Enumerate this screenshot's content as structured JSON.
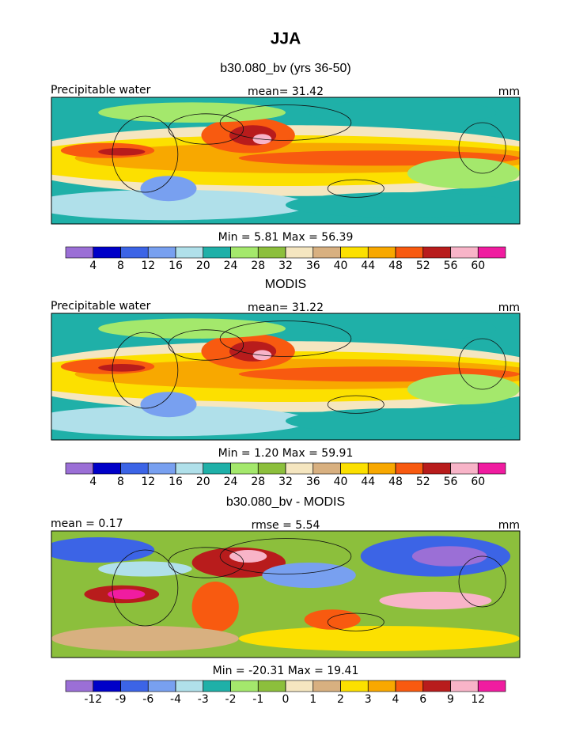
{
  "title": "JJA",
  "panels": [
    {
      "title": "b30.080_bv (yrs 36-50)",
      "left_label": "Precipitable water",
      "center_label": "mean=  31.42",
      "right_label": "mm",
      "stats": "Min =   5.81 Max =  56.39",
      "levels": [
        4,
        8,
        12,
        16,
        20,
        24,
        28,
        32,
        36,
        40,
        44,
        48,
        52,
        56,
        60
      ],
      "colors": [
        "#9b6fd6",
        "#0000c8",
        "#3c64e6",
        "#78a0f0",
        "#b0e0ea",
        "#1fb0a8",
        "#a4e86c",
        "#8cbf3c",
        "#f5e6c0",
        "#d8b080",
        "#fce000",
        "#f8a800",
        "#f85a10",
        "#b81c1c",
        "#f8b4c8",
        "#f01ca0"
      ]
    },
    {
      "title": "MODIS",
      "left_label": "Precipitable water",
      "center_label": "mean=  31.22",
      "right_label": "mm",
      "stats": "Min =   1.20 Max =  59.91",
      "levels": [
        4,
        8,
        12,
        16,
        20,
        24,
        28,
        32,
        36,
        40,
        44,
        48,
        52,
        56,
        60
      ],
      "colors": [
        "#9b6fd6",
        "#0000c8",
        "#3c64e6",
        "#78a0f0",
        "#b0e0ea",
        "#1fb0a8",
        "#a4e86c",
        "#8cbf3c",
        "#f5e6c0",
        "#d8b080",
        "#fce000",
        "#f8a800",
        "#f85a10",
        "#b81c1c",
        "#f8b4c8",
        "#f01ca0"
      ]
    },
    {
      "title": "b30.080_bv - MODIS",
      "left_label": "mean =   0.17",
      "center_label": "rmse =   5.54",
      "right_label": "mm",
      "stats": "Min = -20.31 Max =  19.41",
      "levels": [
        -12,
        -9,
        -6,
        -4,
        -3,
        -2,
        -1,
        0,
        1,
        2,
        3,
        4,
        6,
        9,
        12
      ],
      "colors": [
        "#9b6fd6",
        "#0000c8",
        "#3c64e6",
        "#78a0f0",
        "#b0e0ea",
        "#1fb0a8",
        "#a4e86c",
        "#8cbf3c",
        "#f5e6c0",
        "#d8b080",
        "#fce000",
        "#f8a800",
        "#f85a10",
        "#b81c1c",
        "#f8b4c8",
        "#f01ca0"
      ]
    }
  ]
}
